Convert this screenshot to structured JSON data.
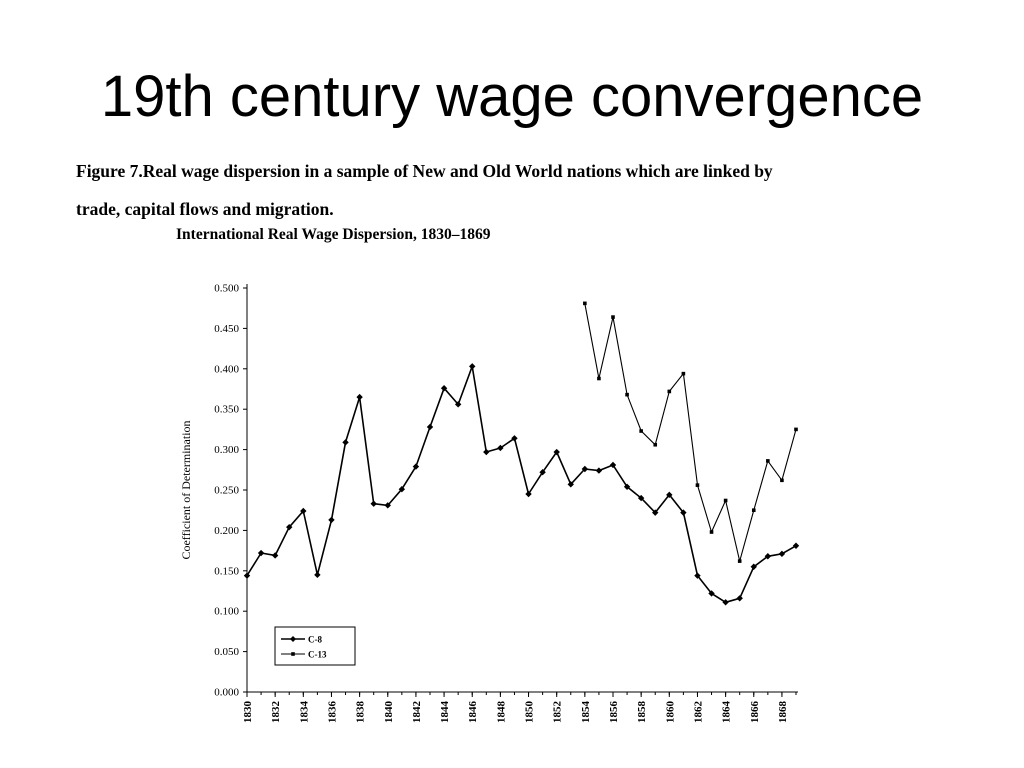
{
  "slide": {
    "title": "19th century wage convergence",
    "caption_line1": "Figure 7.Real wage dispersion in a sample of New and Old World nations which are linked by",
    "caption_line2": "trade, capital flows and migration."
  },
  "chart_data": {
    "type": "line",
    "title": "International Real Wage Dispersion, 1830–1869",
    "xlabel": "",
    "ylabel": "Coefficient of Determination",
    "xlim": [
      1830,
      1869
    ],
    "ylim": [
      0,
      0.5
    ],
    "grid": false,
    "legend_position": "bottom-left",
    "x_ticks": [
      1830,
      1832,
      1834,
      1836,
      1838,
      1840,
      1842,
      1844,
      1846,
      1848,
      1850,
      1852,
      1854,
      1856,
      1858,
      1860,
      1862,
      1864,
      1866,
      1868
    ],
    "y_ticks": [
      "0.000",
      "0.050",
      "0.100",
      "0.150",
      "0.200",
      "0.250",
      "0.300",
      "0.350",
      "0.400",
      "0.450",
      "0.500"
    ],
    "line_color": "#000000",
    "series": [
      {
        "name": "C-8",
        "marker": "diamond",
        "x": [
          1830,
          1831,
          1832,
          1833,
          1834,
          1835,
          1836,
          1837,
          1838,
          1839,
          1840,
          1841,
          1842,
          1843,
          1844,
          1845,
          1846,
          1847,
          1848,
          1849,
          1850,
          1851,
          1852,
          1853,
          1854,
          1855,
          1856,
          1857,
          1858,
          1859,
          1860,
          1861,
          1862,
          1863,
          1864,
          1865,
          1866,
          1867,
          1868,
          1869
        ],
        "values": [
          0.144,
          0.172,
          0.169,
          0.204,
          0.224,
          0.145,
          0.213,
          0.309,
          0.365,
          0.233,
          0.231,
          0.251,
          0.279,
          0.328,
          0.376,
          0.356,
          0.403,
          0.297,
          0.302,
          0.314,
          0.245,
          0.272,
          0.297,
          0.257,
          0.276,
          0.274,
          0.281,
          0.254,
          0.24,
          0.222,
          0.244,
          0.222,
          0.144,
          0.122,
          0.111,
          0.116,
          0.155,
          0.168,
          0.171,
          0.181
        ]
      },
      {
        "name": "C-13",
        "marker": "square",
        "x": [
          1854,
          1855,
          1856,
          1857,
          1858,
          1859,
          1860,
          1861,
          1862,
          1863,
          1864,
          1865,
          1866,
          1867,
          1868,
          1869
        ],
        "values": [
          0.481,
          0.388,
          0.464,
          0.368,
          0.323,
          0.306,
          0.372,
          0.394,
          0.256,
          0.198,
          0.237,
          0.162,
          0.225,
          0.286,
          0.262,
          0.325
        ]
      }
    ]
  }
}
